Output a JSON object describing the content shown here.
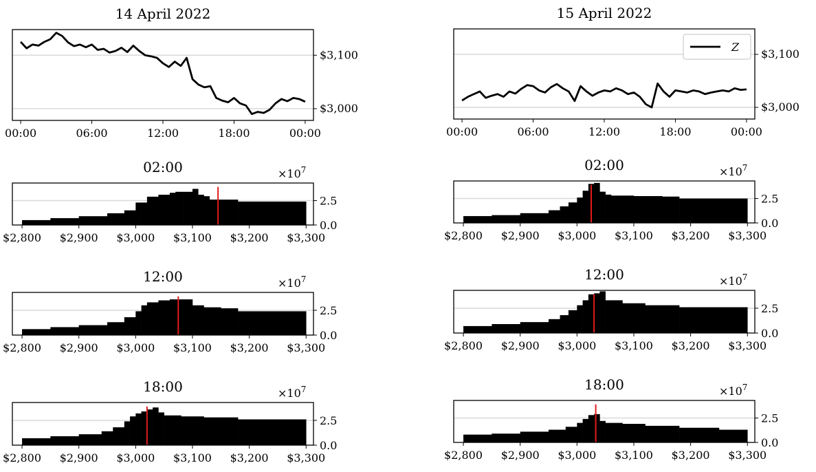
{
  "chart_data": [
    {
      "id": "price_14",
      "type": "line",
      "title": "14 April 2022",
      "x_ticks": [
        "00:00",
        "06:00",
        "12:00",
        "18:00",
        "00:00"
      ],
      "y_ticks": [
        "$3,000",
        "$3,100"
      ],
      "y_tick_values": [
        3000,
        3100
      ],
      "ylim": [
        2978,
        3148
      ],
      "xlim_hours": [
        -0.7,
        24.7
      ],
      "grid": "horizontal, light gray",
      "y_axis_side": "right",
      "series": [
        {
          "color": "#000000",
          "x_hours": [
            0,
            0.5,
            1,
            1.5,
            2,
            2.5,
            3,
            3.5,
            4,
            4.5,
            5,
            5.5,
            6,
            6.5,
            7,
            7.5,
            8,
            8.5,
            9,
            9.5,
            10,
            10.5,
            11,
            11.5,
            12,
            12.5,
            13,
            13.5,
            14,
            14.5,
            15,
            15.5,
            16,
            16.5,
            17,
            17.5,
            18,
            18.5,
            19,
            19.5,
            20,
            20.5,
            21,
            21.5,
            22,
            22.5,
            23,
            23.5,
            24
          ],
          "values": [
            3125,
            3113,
            3120,
            3118,
            3125,
            3130,
            3142,
            3136,
            3124,
            3117,
            3120,
            3115,
            3120,
            3110,
            3112,
            3105,
            3108,
            3114,
            3106,
            3118,
            3108,
            3100,
            3098,
            3095,
            3085,
            3078,
            3088,
            3080,
            3095,
            3055,
            3045,
            3040,
            3042,
            3020,
            3015,
            3012,
            3020,
            3010,
            3006,
            2990,
            2994,
            2992,
            2998,
            3010,
            3018,
            3014,
            3020,
            3018,
            3013
          ]
        }
      ]
    },
    {
      "id": "price_15",
      "type": "line",
      "title": "15 April 2022",
      "x_ticks": [
        "00:00",
        "06:00",
        "12:00",
        "18:00",
        "00:00"
      ],
      "y_ticks": [
        "$3,000",
        "$3,100"
      ],
      "y_tick_values": [
        3000,
        3100
      ],
      "ylim": [
        2978,
        3148
      ],
      "xlim_hours": [
        -0.7,
        24.7
      ],
      "grid": "horizontal, light gray",
      "y_axis_side": "right",
      "legend": {
        "position": "top-right",
        "label": "Z"
      },
      "series": [
        {
          "name": "Z",
          "color": "#000000",
          "x_hours": [
            0,
            0.5,
            1,
            1.5,
            2,
            2.5,
            3,
            3.5,
            4,
            4.5,
            5,
            5.5,
            6,
            6.5,
            7,
            7.5,
            8,
            8.5,
            9,
            9.5,
            10,
            10.5,
            11,
            11.5,
            12,
            12.5,
            13,
            13.5,
            14,
            14.5,
            15,
            15.5,
            16,
            16.5,
            17,
            17.5,
            18,
            18.5,
            19,
            19.5,
            20,
            20.5,
            21,
            21.5,
            22,
            22.5,
            23,
            23.5,
            24
          ],
          "values": [
            3013,
            3020,
            3025,
            3030,
            3018,
            3022,
            3025,
            3020,
            3030,
            3026,
            3035,
            3042,
            3040,
            3032,
            3028,
            3038,
            3044,
            3036,
            3030,
            3012,
            3040,
            3030,
            3022,
            3028,
            3032,
            3030,
            3036,
            3032,
            3025,
            3028,
            3020,
            3006,
            3000,
            3045,
            3030,
            3020,
            3032,
            3030,
            3028,
            3032,
            3030,
            3025,
            3028,
            3030,
            3032,
            3030,
            3036,
            3033,
            3034
          ]
        }
      ]
    },
    {
      "id": "book_14_0200",
      "type": "bar",
      "title": "02:00",
      "exponent_label": "×10^7",
      "x_ticks": [
        "$2,800",
        "$2,900",
        "$3,000",
        "$3,100",
        "$3,200",
        "$3,300"
      ],
      "x_tick_values": [
        2800,
        2900,
        3000,
        3100,
        3200,
        3300
      ],
      "y_ticks": [
        "0.0",
        "2.5"
      ],
      "y_tick_values": [
        0,
        2.5
      ],
      "xlim": [
        2783,
        3313
      ],
      "ylim": [
        0,
        4.3
      ],
      "grid": "horizontal, light gray",
      "y_axis_side": "right",
      "vline_price": 3145,
      "vline_color": "#e41a1c",
      "price_breakpoints": [
        2800,
        2850,
        2900,
        2950,
        2980,
        3000,
        3010,
        3020,
        3040,
        3060,
        3070,
        3085,
        3100,
        3110,
        3120,
        3130,
        3180,
        3300
      ],
      "depth_values": [
        0.5,
        0.7,
        0.9,
        1.2,
        1.5,
        2.3,
        2.3,
        2.9,
        3.1,
        3.3,
        3.4,
        3.4,
        3.7,
        3.1,
        2.95,
        2.6,
        2.4
      ]
    },
    {
      "id": "book_15_0200",
      "type": "bar",
      "title": "02:00",
      "exponent_label": "×10^7",
      "x_ticks": [
        "$2,800",
        "$2,900",
        "$3,000",
        "$3,100",
        "$3,200",
        "$3,300"
      ],
      "x_tick_values": [
        2800,
        2900,
        3000,
        3100,
        3200,
        3300
      ],
      "y_ticks": [
        "0.0",
        "2.5"
      ],
      "y_tick_values": [
        0,
        2.5
      ],
      "xlim": [
        2783,
        3313
      ],
      "ylim": [
        0,
        4.3
      ],
      "grid": "horizontal, light gray",
      "y_axis_side": "right",
      "vline_price": 3025,
      "vline_color": "#e41a1c",
      "price_breakpoints": [
        2800,
        2850,
        2900,
        2950,
        2970,
        2985,
        3000,
        3010,
        3020,
        3030,
        3040,
        3050,
        3060,
        3100,
        3150,
        3180,
        3300
      ],
      "depth_values": [
        0.7,
        0.8,
        1.0,
        1.3,
        1.7,
        2.1,
        2.6,
        3.3,
        4.0,
        4.1,
        3.2,
        2.9,
        2.8,
        2.75,
        2.7,
        2.5
      ]
    },
    {
      "id": "book_14_1200",
      "type": "bar",
      "title": "12:00",
      "exponent_label": "×10^7",
      "x_ticks": [
        "$2,800",
        "$2,900",
        "$3,000",
        "$3,100",
        "$3,200",
        "$3,300"
      ],
      "x_tick_values": [
        2800,
        2900,
        3000,
        3100,
        3200,
        3300
      ],
      "y_ticks": [
        "0.0",
        "2.5"
      ],
      "y_tick_values": [
        0,
        2.5
      ],
      "xlim": [
        2783,
        3313
      ],
      "ylim": [
        0,
        4.3
      ],
      "grid": "horizontal, light gray",
      "y_axis_side": "right",
      "vline_price": 3075,
      "vline_color": "#e41a1c",
      "price_breakpoints": [
        2800,
        2850,
        2900,
        2950,
        2980,
        3000,
        3010,
        3020,
        3040,
        3060,
        3080,
        3100,
        3120,
        3150,
        3180,
        3300
      ],
      "depth_values": [
        0.6,
        0.8,
        1.0,
        1.3,
        1.8,
        2.4,
        3.0,
        3.3,
        3.5,
        3.6,
        3.6,
        3.0,
        2.8,
        2.7,
        2.4
      ]
    },
    {
      "id": "book_15_1200",
      "type": "bar",
      "title": "12:00",
      "exponent_label": "×10^7",
      "x_ticks": [
        "$2,800",
        "$2,900",
        "$3,000",
        "$3,100",
        "$3,200",
        "$3,300"
      ],
      "x_tick_values": [
        2800,
        2900,
        3000,
        3100,
        3200,
        3300
      ],
      "y_ticks": [
        "0.0",
        "2.5"
      ],
      "y_tick_values": [
        0,
        2.5
      ],
      "xlim": [
        2783,
        3313
      ],
      "ylim": [
        0,
        4.3
      ],
      "grid": "horizontal, light gray",
      "y_axis_side": "right",
      "vline_price": 3030,
      "vline_color": "#e41a1c",
      "price_breakpoints": [
        2800,
        2850,
        2900,
        2950,
        2970,
        2985,
        3000,
        3010,
        3020,
        3030,
        3040,
        3050,
        3080,
        3120,
        3180,
        3300
      ],
      "depth_values": [
        0.7,
        0.9,
        1.1,
        1.4,
        1.8,
        2.3,
        2.8,
        3.3,
        3.9,
        4.0,
        4.2,
        3.3,
        3.0,
        2.8,
        2.6
      ]
    },
    {
      "id": "book_14_1800",
      "type": "bar",
      "title": "18:00",
      "exponent_label": "×10^7",
      "x_ticks": [
        "$2,800",
        "$2,900",
        "$3,000",
        "$3,100",
        "$3,200",
        "$3,300"
      ],
      "x_tick_values": [
        2800,
        2900,
        3000,
        3100,
        3200,
        3300
      ],
      "y_ticks": [
        "0.0",
        "2.5"
      ],
      "y_tick_values": [
        0,
        2.5
      ],
      "xlim": [
        2783,
        3313
      ],
      "ylim": [
        0,
        4.3
      ],
      "grid": "horizontal, light gray",
      "y_axis_side": "right",
      "vline_price": 3020,
      "vline_color": "#e41a1c",
      "price_breakpoints": [
        2800,
        2850,
        2900,
        2940,
        2960,
        2980,
        2990,
        3000,
        3010,
        3020,
        3030,
        3040,
        3050,
        3080,
        3120,
        3180,
        3300
      ],
      "depth_values": [
        0.7,
        0.9,
        1.1,
        1.4,
        1.8,
        2.4,
        2.9,
        3.2,
        3.4,
        3.6,
        3.8,
        3.3,
        3.0,
        2.9,
        2.8,
        2.6
      ]
    },
    {
      "id": "book_15_1800",
      "type": "bar",
      "title": "18:00",
      "exponent_label": "×10^7",
      "x_ticks": [
        "$2,800",
        "$2,900",
        "$3,000",
        "$3,100",
        "$3,200",
        "$3,300"
      ],
      "x_tick_values": [
        2800,
        2900,
        3000,
        3100,
        3200,
        3300
      ],
      "y_ticks": [
        "0.0",
        "2.5"
      ],
      "y_tick_values": [
        0,
        2.5
      ],
      "xlim": [
        2783,
        3313
      ],
      "ylim": [
        0,
        4.3
      ],
      "grid": "horizontal, light gray",
      "y_axis_side": "right",
      "vline_price": 3033,
      "vline_color": "#e41a1c",
      "price_breakpoints": [
        2800,
        2850,
        2900,
        2950,
        2980,
        3000,
        3010,
        3020,
        3030,
        3040,
        3050,
        3080,
        3120,
        3180,
        3250,
        3300
      ],
      "depth_values": [
        0.8,
        0.9,
        1.1,
        1.3,
        1.6,
        2.0,
        2.4,
        2.8,
        2.9,
        2.2,
        2.0,
        1.9,
        1.7,
        1.5,
        1.3
      ]
    }
  ]
}
